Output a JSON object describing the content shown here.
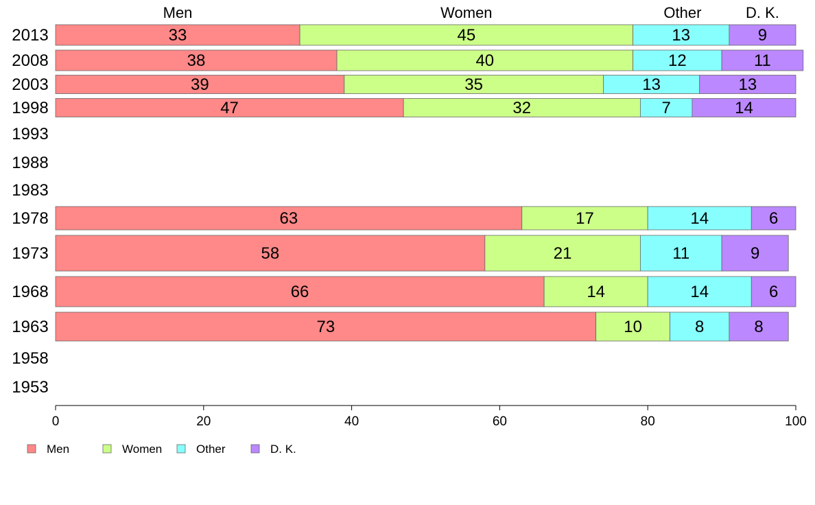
{
  "chart_data": {
    "type": "bar",
    "orientation": "horizontal",
    "stacked": true,
    "title": "",
    "xlabel": "",
    "ylabel": "",
    "xlim": [
      0,
      100
    ],
    "xticks": [
      0,
      20,
      40,
      60,
      80,
      100
    ],
    "legend_position": "bottom-left",
    "grid": false,
    "categories": [
      "2013",
      "2008",
      "2003",
      "1998",
      "1993",
      "1988",
      "1983",
      "1978",
      "1973",
      "1968",
      "1963",
      "1958",
      "1953"
    ],
    "series": [
      {
        "name": "Men",
        "color": "#ff8888",
        "values": [
          33,
          38,
          39,
          47,
          null,
          null,
          null,
          63,
          58,
          66,
          73,
          null,
          null
        ]
      },
      {
        "name": "Women",
        "color": "#ccff88",
        "values": [
          45,
          40,
          35,
          32,
          null,
          null,
          null,
          17,
          21,
          14,
          10,
          null,
          null
        ]
      },
      {
        "name": "Other",
        "color": "#88ffff",
        "values": [
          13,
          12,
          13,
          7,
          null,
          null,
          null,
          14,
          11,
          14,
          8,
          null,
          null
        ]
      },
      {
        "name": "D. K.",
        "color": "#bb88ff",
        "values": [
          9,
          11,
          13,
          14,
          null,
          null,
          null,
          6,
          9,
          6,
          8,
          null,
          null
        ]
      }
    ],
    "top_labels": [
      {
        "text": "Men",
        "x": 16.5
      },
      {
        "text": "Women",
        "x": 55.5
      },
      {
        "text": "Other",
        "x": 84.7
      },
      {
        "text": "D. K.",
        "x": 95.5
      }
    ]
  }
}
